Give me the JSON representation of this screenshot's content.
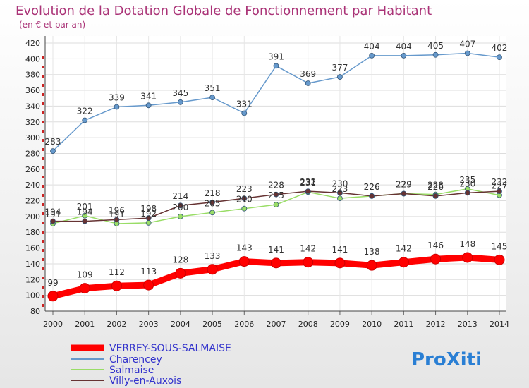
{
  "chart_data": {
    "type": "line",
    "title": "Evolution de la Dotation Globale de Fonctionnement par Habitant",
    "subtitle": "(en € et par an)",
    "categories": [
      "2000",
      "2001",
      "2002",
      "2003",
      "2004",
      "2005",
      "2006",
      "2007",
      "2008",
      "2009",
      "2010",
      "2011",
      "2012",
      "2013",
      "2014"
    ],
    "ylim": [
      80,
      420
    ],
    "yticks": [
      80,
      100,
      120,
      140,
      160,
      180,
      200,
      220,
      240,
      260,
      280,
      300,
      320,
      340,
      360,
      380,
      400,
      420
    ],
    "grid": true,
    "series": [
      {
        "name": "VERREY-SOUS-SALMAISE",
        "color": "#ff0000",
        "values": [
          99,
          109,
          112,
          113,
          128,
          133,
          143,
          141,
          142,
          141,
          138,
          142,
          146,
          148,
          145
        ]
      },
      {
        "name": "Charencey",
        "color": "#6699cc",
        "values": [
          283,
          322,
          339,
          341,
          345,
          351,
          331,
          391,
          369,
          377,
          404,
          404,
          405,
          407,
          402
        ]
      },
      {
        "name": "Salmaise",
        "color": "#99dd66",
        "values": [
          191,
          201,
          191,
          192,
          200,
          205,
          210,
          215,
          231,
          223,
          226,
          229,
          228,
          235,
          227
        ]
      },
      {
        "name": "Villy-en-Auxois",
        "color": "#663333",
        "values": [
          194,
          194,
          196,
          198,
          214,
          218,
          223,
          228,
          232,
          230,
          226,
          229,
          226,
          230,
          232
        ]
      }
    ],
    "label_order": [
      2,
      3,
      1,
      0
    ],
    "logo": "ProXiti"
  }
}
